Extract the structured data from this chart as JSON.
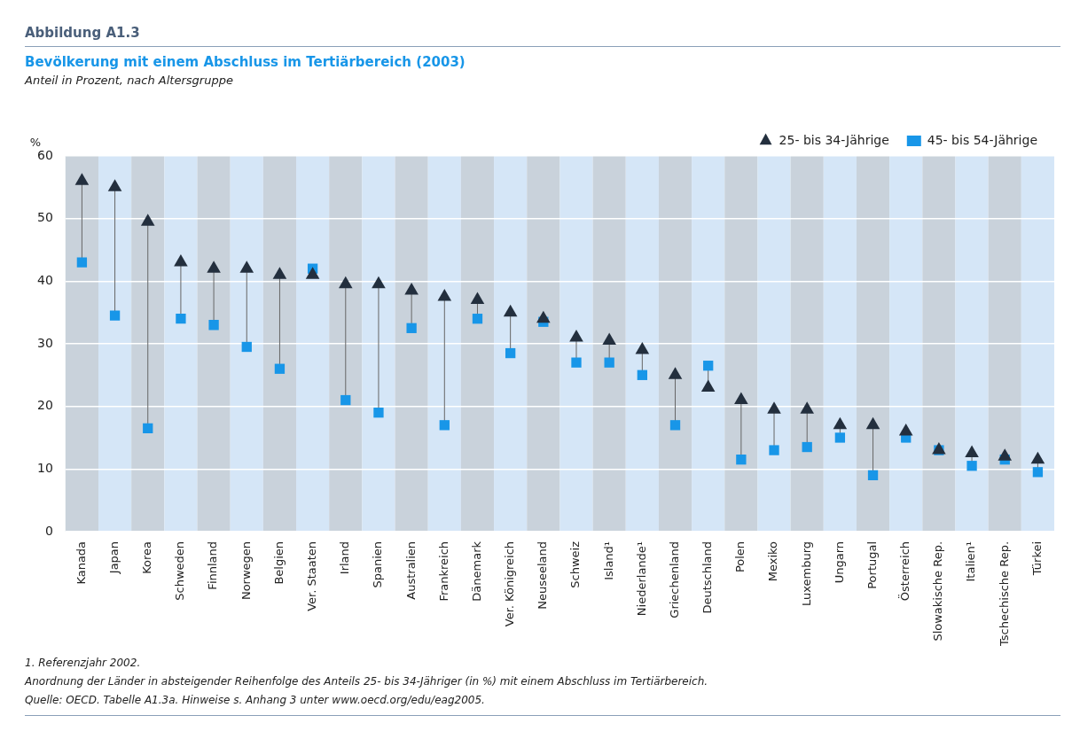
{
  "chart_data": {
    "type": "scatter",
    "title": "Bevölkerung mit einem Abschluss im Tertiärbereich (2003)",
    "subtitle": "Anteil in Prozent, nach Altersgruppe",
    "ylabel": "%",
    "categories": [
      "Kanada",
      "Japan",
      "Korea",
      "Schweden",
      "Finnland",
      "Norwegen",
      "Belgien",
      "Ver. Staaten",
      "Irland",
      "Spanien",
      "Australien",
      "Frankreich",
      "Dänemark",
      "Ver. Königreich",
      "Neuseeland",
      "Schweiz",
      "Island¹",
      "Niederlande¹",
      "Griechenland",
      "Deutschland",
      "Polen",
      "Mexiko",
      "Luxemburg",
      "Ungarn",
      "Portugal",
      "Österreich",
      "Slowakische Rep.",
      "Italien¹",
      "Tschechische Rep.",
      "Türkei"
    ],
    "series": [
      {
        "name": "25- bis 34-Jährige",
        "color": "#232f3e",
        "marker": "triangle",
        "values": [
          56,
          55,
          49.5,
          43,
          42,
          42,
          41,
          41,
          39.5,
          39.5,
          38.5,
          37.5,
          37,
          35,
          34,
          31,
          30.5,
          29,
          25,
          23,
          21,
          19.5,
          19.5,
          17,
          17,
          16,
          13,
          12.5,
          12,
          11.5
        ]
      },
      {
        "name": "45- bis 54-Jährige",
        "color": "#1896e8",
        "marker": "square",
        "values": [
          43,
          34.5,
          16.5,
          34,
          33,
          29.5,
          26,
          42,
          21,
          19,
          32.5,
          17,
          34,
          28.5,
          33.5,
          27,
          27,
          25,
          17,
          26.5,
          11.5,
          13,
          13.5,
          15,
          9,
          15,
          13,
          10.5,
          11.5,
          9.5
        ]
      }
    ],
    "ylim": [
      0,
      60
    ],
    "yticks": [
      0,
      10,
      20,
      30,
      40,
      50,
      60
    ],
    "grid": "y",
    "legend": "top right",
    "annotations": [
      "Abbildung A1.3",
      "1. Referenzjahr 2002.",
      "Anordnung der Länder in absteigender Reihenfolge des Anteils 25- bis 34-Jähriger (in %) mit einem Abschluss im Tertiärbereich.",
      "Quelle: OECD. Tabelle A1.3a.   Hinweise s. Anhang 3 unter www.oecd.org/edu/eag2005."
    ]
  }
}
